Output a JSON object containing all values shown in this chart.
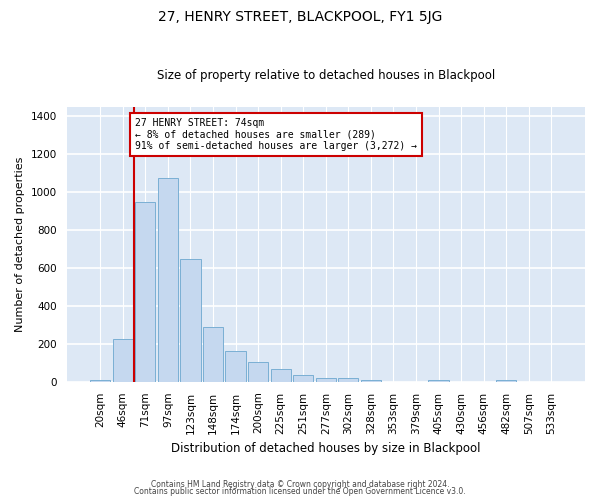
{
  "title": "27, HENRY STREET, BLACKPOOL, FY1 5JG",
  "subtitle": "Size of property relative to detached houses in Blackpool",
  "xlabel": "Distribution of detached houses by size in Blackpool",
  "ylabel": "Number of detached properties",
  "bar_color": "#c5d8ef",
  "bar_edge_color": "#7aafd4",
  "background_color": "#dde8f5",
  "grid_color": "#ffffff",
  "fig_background": "#ffffff",
  "categories": [
    "20sqm",
    "46sqm",
    "71sqm",
    "97sqm",
    "123sqm",
    "148sqm",
    "174sqm",
    "200sqm",
    "225sqm",
    "251sqm",
    "277sqm",
    "302sqm",
    "328sqm",
    "353sqm",
    "379sqm",
    "405sqm",
    "430sqm",
    "456sqm",
    "482sqm",
    "507sqm",
    "533sqm"
  ],
  "values": [
    10,
    225,
    950,
    1075,
    650,
    290,
    160,
    105,
    65,
    35,
    20,
    20,
    10,
    0,
    0,
    10,
    0,
    0,
    10,
    0,
    0
  ],
  "ylim": [
    0,
    1450
  ],
  "yticks": [
    0,
    200,
    400,
    600,
    800,
    1000,
    1200,
    1400
  ],
  "property_line_x": 1.5,
  "annotation_title": "27 HENRY STREET: 74sqm",
  "annotation_line1": "← 8% of detached houses are smaller (289)",
  "annotation_line2": "91% of semi-detached houses are larger (3,272) →",
  "annotation_box_color": "#ffffff",
  "annotation_box_edge": "#cc0000",
  "vline_color": "#cc0000",
  "footer1": "Contains HM Land Registry data © Crown copyright and database right 2024.",
  "footer2": "Contains public sector information licensed under the Open Government Licence v3.0.",
  "title_fontsize": 10,
  "subtitle_fontsize": 8.5,
  "ylabel_fontsize": 8,
  "xlabel_fontsize": 8.5,
  "tick_fontsize": 7.5,
  "annotation_fontsize": 7,
  "footer_fontsize": 5.5
}
